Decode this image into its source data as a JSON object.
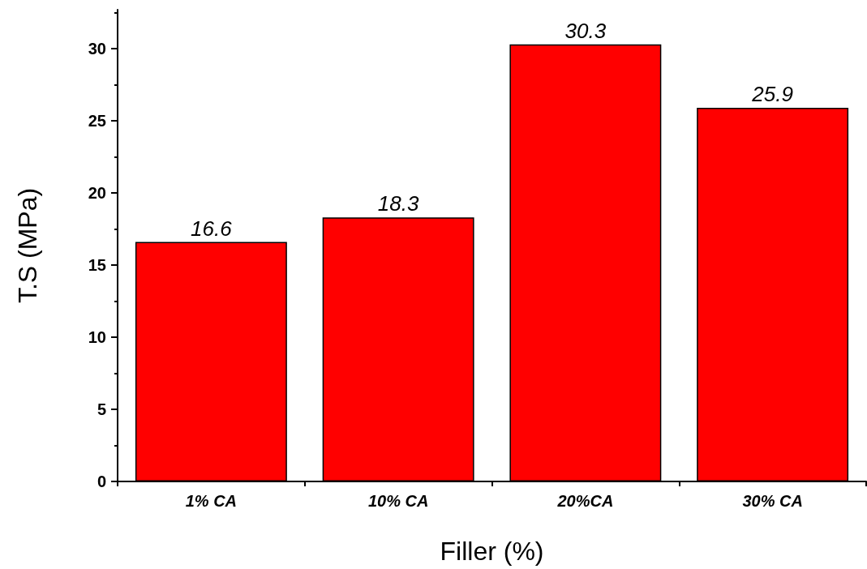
{
  "chart_data": {
    "type": "bar",
    "xlabel": "Filler (%)",
    "ylabel": "T.S (MPa)",
    "categories": [
      "1% CA",
      "10% CA",
      "20%CA",
      "30% CA"
    ],
    "values": [
      16.6,
      18.3,
      30.3,
      25.9
    ],
    "color": "#ff0000",
    "ylim": [
      0,
      32.7
    ],
    "yticks": [
      0,
      5,
      10,
      15,
      20,
      25,
      30
    ],
    "data_labels": true,
    "grid": false
  }
}
